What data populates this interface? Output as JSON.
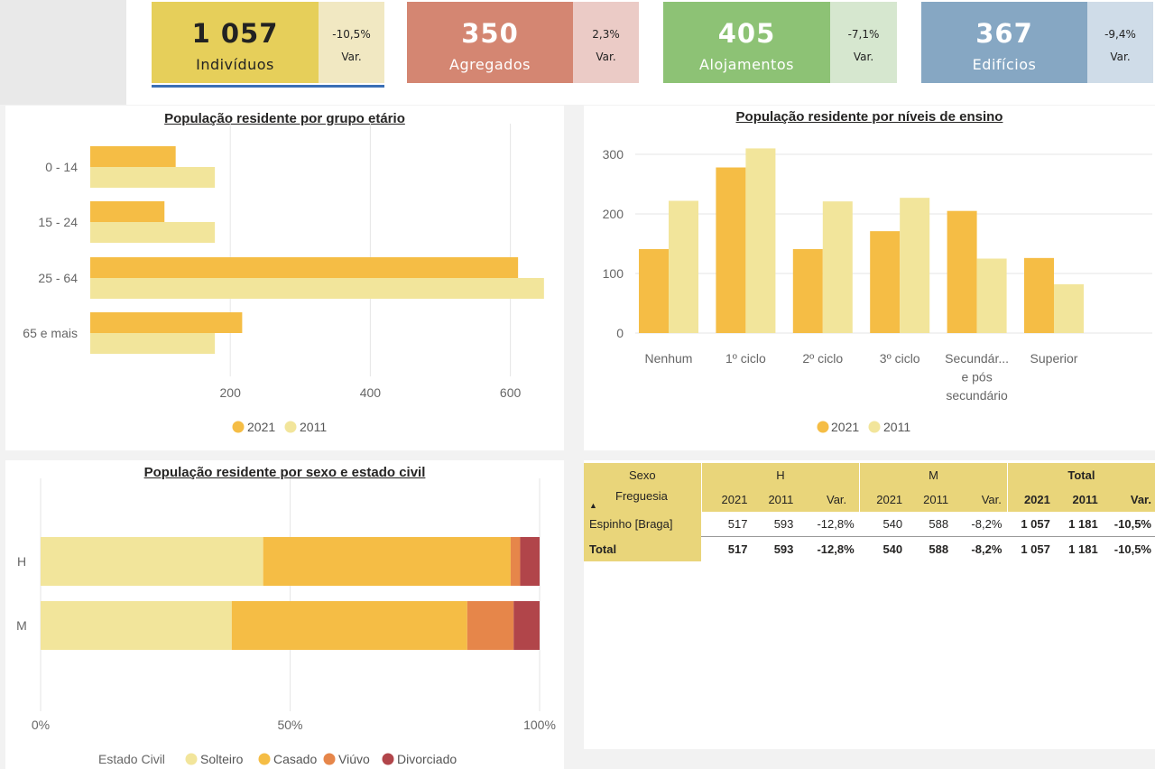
{
  "kpis": [
    {
      "value": "1 057",
      "label": "Indivíduos",
      "var": "-10,5%",
      "var_label": "Var.",
      "color": "#e6cf5a",
      "var_color": "#f1e8c2"
    },
    {
      "value": "350",
      "label": "Agregados",
      "var": "2,3%",
      "var_label": "Var.",
      "color": "#d48672",
      "var_color": "#ebcbc6"
    },
    {
      "value": "405",
      "label": "Alojamentos",
      "var": "-7,1%",
      "var_label": "Var.",
      "color": "#8dc275",
      "var_color": "#d6e7cf"
    },
    {
      "value": "367",
      "label": "Edifícios",
      "var": "-9,4%",
      "var_label": "Var.",
      "color": "#86a7c3",
      "var_color": "#cfdce8"
    }
  ],
  "colors": {
    "c2021": "#f5bd45",
    "c2011": "#f2e59b",
    "solteiro": "#f2e59b",
    "casado": "#f5bd45",
    "viuvo": "#e6864a",
    "divorciado": "#b1454a",
    "table_header": "#e9d57a"
  },
  "chart_data": [
    {
      "type": "bar",
      "orientation": "horizontal",
      "title": "População residente por grupo etário",
      "categories": [
        "0 - 14",
        "15 - 24",
        "25 - 64",
        "65 e mais"
      ],
      "series": [
        {
          "name": "2021",
          "values": [
            122,
            106,
            611,
            217
          ]
        },
        {
          "name": "2011",
          "values": [
            178,
            178,
            648,
            178
          ]
        }
      ],
      "x_ticks": [
        "200",
        "400",
        "600"
      ],
      "xlim": [
        0,
        660
      ],
      "legend": "bottom"
    },
    {
      "type": "bar",
      "title": "População residente por níveis de ensino",
      "categories": [
        "Nenhum",
        "1º ciclo",
        "2º ciclo",
        "3º ciclo",
        "Secundár... e pós secundário",
        "Superior"
      ],
      "series": [
        {
          "name": "2021",
          "values": [
            141,
            278,
            141,
            171,
            205,
            126
          ]
        },
        {
          "name": "2011",
          "values": [
            222,
            310,
            221,
            227,
            125,
            82
          ]
        }
      ],
      "y_ticks": [
        "0",
        "100",
        "200",
        "300"
      ],
      "ylim": [
        0,
        340
      ],
      "legend": "bottom"
    },
    {
      "type": "bar",
      "orientation": "horizontal",
      "stacked": "100%",
      "title": "População residente por sexo e estado civil",
      "categories": [
        "H",
        "M"
      ],
      "series": [
        {
          "name": "Solteiro",
          "values": [
            44.6,
            38.3
          ]
        },
        {
          "name": "Casado",
          "values": [
            49.6,
            47.2
          ]
        },
        {
          "name": "Viúvo",
          "values": [
            1.9,
            9.3
          ]
        },
        {
          "name": "Divorciado",
          "values": [
            3.9,
            5.2
          ]
        }
      ],
      "x_ticks": [
        "0%",
        "50%",
        "100%"
      ],
      "legend_title": "Estado Civil",
      "legend": "bottom"
    }
  ],
  "matrix": {
    "sexo_label": "Sexo",
    "freguesia_label": "Freguesia",
    "groups": [
      "H",
      "M",
      "Total"
    ],
    "cols": [
      "2021",
      "2011",
      "Var.",
      "2021",
      "2011",
      "Var.",
      "2021",
      "2011",
      "Var."
    ],
    "rows": [
      {
        "label": "Espinho [Braga]",
        "values": [
          "517",
          "593",
          "-12,8%",
          "540",
          "588",
          "-8,2%",
          "1 057",
          "1 181",
          "-10,5%"
        ]
      },
      {
        "label": "Total",
        "values": [
          "517",
          "593",
          "-12,8%",
          "540",
          "588",
          "-8,2%",
          "1 057",
          "1 181",
          "-10,5%"
        ]
      }
    ]
  }
}
